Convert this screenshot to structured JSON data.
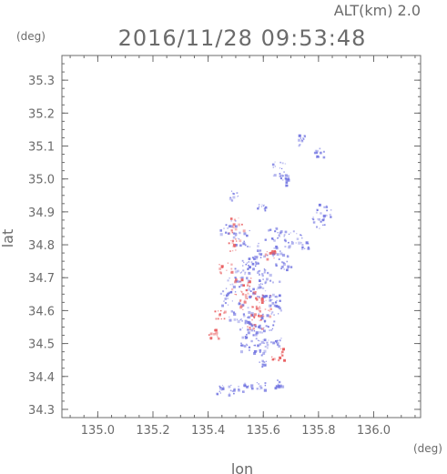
{
  "chart_data": {
    "type": "scatter",
    "title": "2016/11/28 09:53:48",
    "altitude_label": "ALT(km) 2.0",
    "xlabel": "lon",
    "ylabel": "lat",
    "xunit": "(deg)",
    "yunit": "(deg)",
    "xlim": [
      134.87,
      136.17
    ],
    "ylim": [
      34.275,
      35.375
    ],
    "xticks": [
      135.0,
      135.2,
      135.4,
      135.6,
      135.8,
      136.0
    ],
    "xtick_labels": [
      "135.0",
      "135.2",
      "135.4",
      "135.6",
      "135.8",
      "136.0"
    ],
    "yticks": [
      34.3,
      34.4,
      34.5,
      34.6,
      34.7,
      34.8,
      34.9,
      35.0,
      35.1,
      35.2,
      35.3
    ],
    "ytick_labels": [
      "34.3",
      "34.4",
      "34.5",
      "34.6",
      "34.7",
      "34.8",
      "34.9",
      "35.0",
      "35.1",
      "35.2",
      "35.3"
    ],
    "grid": false,
    "colors": {
      "positive": "#e8585a",
      "negative": "#6f72e0",
      "axis": "#6b6b6b"
    },
    "patches": [
      {
        "lon": 135.74,
        "lat": 35.12,
        "sign": "neg",
        "size": 0.6
      },
      {
        "lon": 135.8,
        "lat": 35.08,
        "sign": "neg",
        "size": 0.5
      },
      {
        "lon": 135.66,
        "lat": 35.03,
        "sign": "neg",
        "size": 1.0
      },
      {
        "lon": 135.68,
        "lat": 35.0,
        "sign": "neg",
        "size": 0.6
      },
      {
        "lon": 135.49,
        "lat": 34.95,
        "sign": "neg",
        "size": 0.5
      },
      {
        "lon": 135.59,
        "lat": 34.92,
        "sign": "neg",
        "size": 0.5
      },
      {
        "lon": 135.82,
        "lat": 34.9,
        "sign": "neg",
        "size": 1.0
      },
      {
        "lon": 135.8,
        "lat": 34.87,
        "sign": "neg",
        "size": 0.8
      },
      {
        "lon": 135.5,
        "lat": 34.86,
        "sign": "pos",
        "size": 0.9
      },
      {
        "lon": 135.47,
        "lat": 34.85,
        "sign": "neg",
        "size": 1.0
      },
      {
        "lon": 135.52,
        "lat": 34.82,
        "sign": "neg",
        "size": 1.0
      },
      {
        "lon": 135.49,
        "lat": 34.8,
        "sign": "pos",
        "size": 0.7
      },
      {
        "lon": 135.64,
        "lat": 34.84,
        "sign": "neg",
        "size": 0.8
      },
      {
        "lon": 135.69,
        "lat": 34.82,
        "sign": "neg",
        "size": 1.0
      },
      {
        "lon": 135.74,
        "lat": 34.81,
        "sign": "neg",
        "size": 0.9
      },
      {
        "lon": 135.61,
        "lat": 34.79,
        "sign": "neg",
        "size": 1.2
      },
      {
        "lon": 135.62,
        "lat": 34.77,
        "sign": "pos",
        "size": 0.6
      },
      {
        "lon": 135.66,
        "lat": 34.76,
        "sign": "neg",
        "size": 0.9
      },
      {
        "lon": 135.56,
        "lat": 34.75,
        "sign": "neg",
        "size": 0.6
      },
      {
        "lon": 135.68,
        "lat": 34.74,
        "sign": "neg",
        "size": 0.5
      },
      {
        "lon": 135.46,
        "lat": 34.73,
        "sign": "pos",
        "size": 0.7
      },
      {
        "lon": 135.52,
        "lat": 34.71,
        "sign": "neg",
        "size": 0.8
      },
      {
        "lon": 135.55,
        "lat": 34.73,
        "sign": "neg",
        "size": 1.1
      },
      {
        "lon": 135.6,
        "lat": 34.71,
        "sign": "neg",
        "size": 0.7
      },
      {
        "lon": 135.49,
        "lat": 34.68,
        "sign": "neg",
        "size": 1.0
      },
      {
        "lon": 135.52,
        "lat": 34.67,
        "sign": "pos",
        "size": 1.4
      },
      {
        "lon": 135.57,
        "lat": 34.67,
        "sign": "neg",
        "size": 1.2
      },
      {
        "lon": 135.62,
        "lat": 34.66,
        "sign": "neg",
        "size": 1.5
      },
      {
        "lon": 135.47,
        "lat": 34.64,
        "sign": "neg",
        "size": 0.9
      },
      {
        "lon": 135.55,
        "lat": 34.63,
        "sign": "pos",
        "size": 1.3
      },
      {
        "lon": 135.59,
        "lat": 34.62,
        "sign": "pos",
        "size": 1.2
      },
      {
        "lon": 135.63,
        "lat": 34.62,
        "sign": "neg",
        "size": 1.2
      },
      {
        "lon": 135.51,
        "lat": 34.6,
        "sign": "neg",
        "size": 1.3
      },
      {
        "lon": 135.58,
        "lat": 34.58,
        "sign": "pos",
        "size": 1.5
      },
      {
        "lon": 135.54,
        "lat": 34.57,
        "sign": "neg",
        "size": 1.2
      },
      {
        "lon": 135.61,
        "lat": 34.57,
        "sign": "neg",
        "size": 1.0
      },
      {
        "lon": 135.44,
        "lat": 34.59,
        "sign": "pos",
        "size": 0.5
      },
      {
        "lon": 135.56,
        "lat": 34.54,
        "sign": "neg",
        "size": 1.1
      },
      {
        "lon": 135.6,
        "lat": 34.53,
        "sign": "neg",
        "size": 1.0
      },
      {
        "lon": 135.55,
        "lat": 34.5,
        "sign": "neg",
        "size": 1.2
      },
      {
        "lon": 135.59,
        "lat": 34.49,
        "sign": "neg",
        "size": 0.9
      },
      {
        "lon": 135.42,
        "lat": 34.53,
        "sign": "pos",
        "size": 0.6
      },
      {
        "lon": 135.65,
        "lat": 34.51,
        "sign": "neg",
        "size": 0.5
      },
      {
        "lon": 135.65,
        "lat": 34.47,
        "sign": "pos",
        "size": 0.7
      },
      {
        "lon": 135.6,
        "lat": 34.44,
        "sign": "neg",
        "size": 0.4
      },
      {
        "lon": 135.44,
        "lat": 34.36,
        "sign": "neg",
        "size": 0.5
      },
      {
        "lon": 135.49,
        "lat": 34.36,
        "sign": "neg",
        "size": 0.6
      },
      {
        "lon": 135.54,
        "lat": 34.37,
        "sign": "neg",
        "size": 0.5
      },
      {
        "lon": 135.59,
        "lat": 34.37,
        "sign": "neg",
        "size": 0.4
      },
      {
        "lon": 135.65,
        "lat": 34.38,
        "sign": "neg",
        "size": 0.4
      }
    ]
  }
}
